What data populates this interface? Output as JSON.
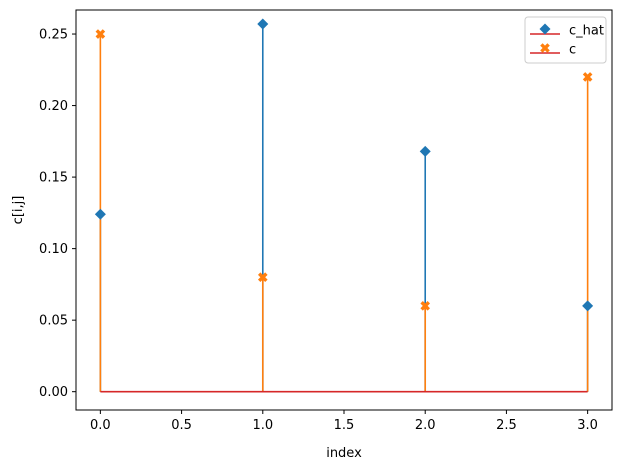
{
  "chart_data": {
    "type": "stem",
    "xlabel": "index",
    "ylabel": "c[i,j]",
    "xlim": [
      -0.15,
      3.15
    ],
    "ylim": [
      -0.0128,
      0.2668
    ],
    "xticks": [
      0.0,
      0.5,
      1.0,
      1.5,
      2.0,
      2.5,
      3.0
    ],
    "yticks": [
      0.0,
      0.05,
      0.1,
      0.15,
      0.2,
      0.25
    ],
    "xtick_labels": [
      "0.0",
      "0.5",
      "1.0",
      "1.5",
      "2.0",
      "2.5",
      "3.0"
    ],
    "ytick_labels": [
      "0.00",
      "0.05",
      "0.10",
      "0.15",
      "0.20",
      "0.25"
    ],
    "baseline": 0,
    "baseline_color": "#d62728",
    "grid": false,
    "legend_position": "top-right",
    "series": [
      {
        "name": "c_hat",
        "marker": "diamond",
        "color": "#1f77b4",
        "x": [
          0,
          1,
          2,
          3
        ],
        "y": [
          0.124,
          0.257,
          0.168,
          0.06
        ]
      },
      {
        "name": "c",
        "marker": "x-filled",
        "color": "#ff7f0e",
        "x": [
          0,
          1,
          2,
          3
        ],
        "y": [
          0.25,
          0.08,
          0.06,
          0.22
        ]
      }
    ]
  }
}
